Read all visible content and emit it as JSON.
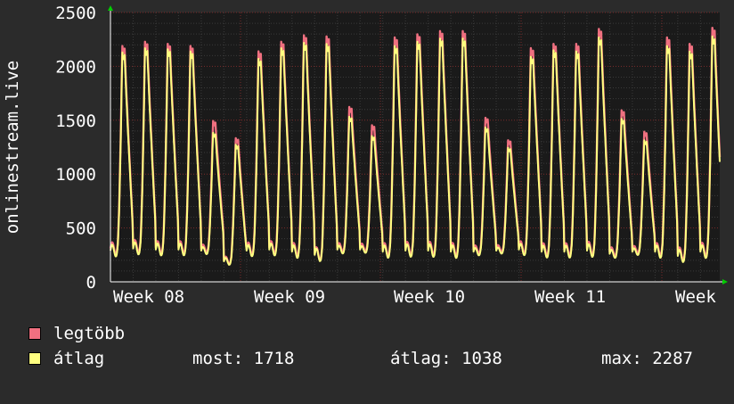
{
  "chart_data": {
    "type": "area",
    "ylabel": "onlinestream.live",
    "ylim": [
      0,
      2500
    ],
    "yticks": [
      0,
      500,
      1000,
      1500,
      2000,
      2500
    ],
    "x_tick_labels": [
      "Week 08",
      "Week 09",
      "Week 10",
      "Week 11",
      "Week"
    ],
    "series": [
      {
        "name": "legtöbb",
        "color": "#f07080",
        "daily_peaks": [
          2200,
          2240,
          2220,
          2200,
          1500,
          1340,
          2150,
          2240,
          2300,
          2290,
          1630,
          1460,
          2280,
          2310,
          2340,
          2340,
          1530,
          1320,
          2180,
          2220,
          2220,
          2360,
          1600,
          1400,
          2280,
          2220,
          2370
        ],
        "daily_troughs": [
          310,
          330,
          320,
          320,
          310,
          200,
          310,
          320,
          300,
          260,
          320,
          320,
          300,
          310,
          310,
          300,
          300,
          310,
          320,
          300,
          300,
          310,
          280,
          300,
          300,
          260,
          300
        ]
      },
      {
        "name": "átlag",
        "color": "#ffff80",
        "daily_peaks": [
          2140,
          2180,
          2170,
          2150,
          1390,
          1280,
          2080,
          2180,
          2230,
          2220,
          1540,
          1360,
          2200,
          2240,
          2270,
          2270,
          1440,
          1250,
          2100,
          2160,
          2150,
          2280,
          1520,
          1320,
          2200,
          2150,
          2290
        ],
        "daily_troughs": [
          290,
          310,
          300,
          300,
          290,
          190,
          290,
          300,
          280,
          250,
          300,
          300,
          280,
          290,
          290,
          280,
          280,
          290,
          300,
          280,
          280,
          290,
          260,
          280,
          280,
          240,
          280
        ]
      }
    ],
    "grid": true
  },
  "legend": {
    "max_label": "legtöbb",
    "avg_label": "átlag",
    "now": "most: 1718",
    "average": "átlag: 1038",
    "maximum": "max: 2287"
  },
  "colors": {
    "background": "#2b2b2b",
    "plot_background": "#1a1a1a",
    "max_series": "#f07080",
    "avg_series": "#ffff80",
    "arrow": "#00cc00"
  }
}
